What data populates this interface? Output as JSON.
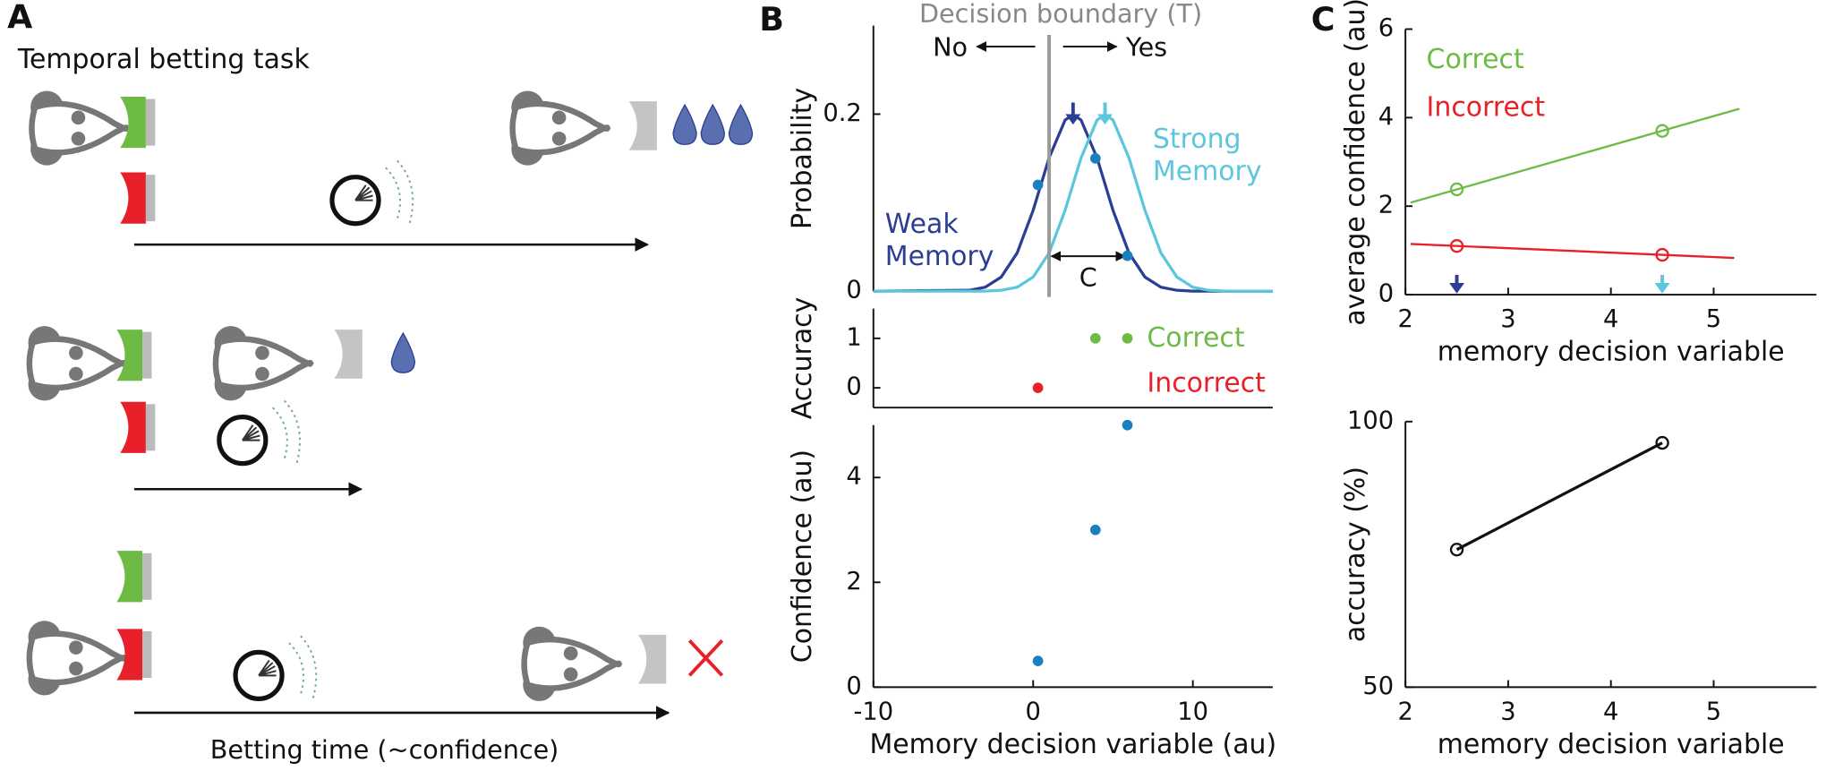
{
  "labels": [
    "A",
    "B",
    "C"
  ],
  "task": {
    "title": "Temporal betting task",
    "xlabel": "Betting time (~confidence)"
  },
  "chart_data": [
    {
      "type": "line",
      "ylabel": "Probability",
      "xlim": [
        -10,
        15
      ],
      "ylim": [
        0,
        0.3
      ],
      "yticks": [
        0,
        0.2
      ],
      "annotations": [
        "Decision boundary (T)",
        "No",
        "Yes",
        "C"
      ],
      "boundary": 1,
      "x": [
        -10,
        -4,
        -3,
        -2,
        -1,
        0,
        1,
        2,
        2.5,
        3,
        4,
        4.5,
        5,
        6,
        7,
        8,
        9,
        10,
        11,
        12,
        15
      ],
      "series": [
        {
          "name": "Weak Memory",
          "color": "#2b3e94",
          "values": [
            0,
            0.001,
            0.0045,
            0.0159,
            0.0432,
            0.0913,
            0.1506,
            0.1933,
            0.1995,
            0.1933,
            0.1506,
            0.121,
            0.0913,
            0.0432,
            0.0159,
            0.0045,
            0.001,
            0,
            0,
            0,
            0
          ]
        },
        {
          "name": "Strong Memory",
          "color": "#5bc6dc",
          "values": [
            0,
            0,
            0,
            0.001,
            0.0045,
            0.0159,
            0.0432,
            0.0913,
            0.121,
            0.1506,
            0.1933,
            0.1995,
            0.1933,
            0.1506,
            0.0913,
            0.0432,
            0.0159,
            0.0045,
            0.001,
            0,
            0
          ]
        }
      ],
      "means": [
        2.5,
        4.5
      ],
      "points": {
        "color": "#1a7fc1",
        "x": [
          0.3,
          3.9,
          5.9
        ],
        "values": [
          0.12,
          0.15,
          0.04
        ]
      }
    },
    {
      "type": "scatter",
      "ylabel": "Accuracy",
      "xlim": [
        -10,
        15
      ],
      "ylim": [
        -0.4,
        1.6
      ],
      "yticks": [
        0,
        1
      ],
      "marker": "dot",
      "series": [
        {
          "name": "Correct",
          "color": "#6dbb45",
          "x": [
            3.9,
            5.9
          ],
          "values": [
            1,
            1
          ]
        },
        {
          "name": "Incorrect",
          "color": "#e8202a",
          "x": [
            0.3
          ],
          "values": [
            0
          ]
        }
      ]
    },
    {
      "type": "scatter",
      "ylabel": "Confidence (au)",
      "xlabel": "Memory decision variable (au)",
      "xlim": [
        -10,
        15
      ],
      "ylim": [
        0,
        5
      ],
      "xticks": [
        -10,
        0,
        10
      ],
      "yticks": [
        0,
        2,
        4
      ],
      "marker": "dot",
      "series": [
        {
          "color": "#1a7fc1",
          "x": [
            0.3,
            3.9,
            5.9
          ],
          "values": [
            0.5,
            3,
            5
          ]
        }
      ]
    },
    {
      "type": "scatter",
      "ylabel": "average confidence (au)",
      "xlabel": "memory decision variable",
      "xlim": [
        2,
        6
      ],
      "ylim": [
        0,
        6
      ],
      "xticks": [
        2,
        3,
        4,
        5
      ],
      "yticks": [
        0,
        2,
        4,
        6
      ],
      "marker": "open",
      "means": [
        2.5,
        4.5
      ],
      "mean_colors": [
        "#2b3e94",
        "#5bc6dc"
      ],
      "series": [
        {
          "name": "Correct",
          "color": "#6dbb45",
          "x": [
            2.5,
            4.5
          ],
          "values": [
            2.38,
            3.7
          ],
          "fit": {
            "x": [
              2.05,
              5.25
            ],
            "values": [
              2.08,
              4.2
            ]
          }
        },
        {
          "name": "Incorrect",
          "color": "#e8202a",
          "x": [
            2.5,
            4.5
          ],
          "values": [
            1.1,
            0.9
          ],
          "fit": {
            "x": [
              2.05,
              5.2
            ],
            "values": [
              1.145,
              0.83
            ]
          }
        }
      ]
    },
    {
      "type": "line",
      "ylabel": "accuracy (%)",
      "xlabel": "memory decision variable",
      "xlim": [
        2,
        6
      ],
      "ylim": [
        50,
        100
      ],
      "xticks": [
        2,
        3,
        4,
        5
      ],
      "yticks": [
        50,
        100
      ],
      "marker": "open",
      "x": [
        2.5,
        4.5
      ],
      "series": [
        {
          "color": "#111111",
          "values": [
            75.9,
            96
          ]
        }
      ]
    }
  ]
}
